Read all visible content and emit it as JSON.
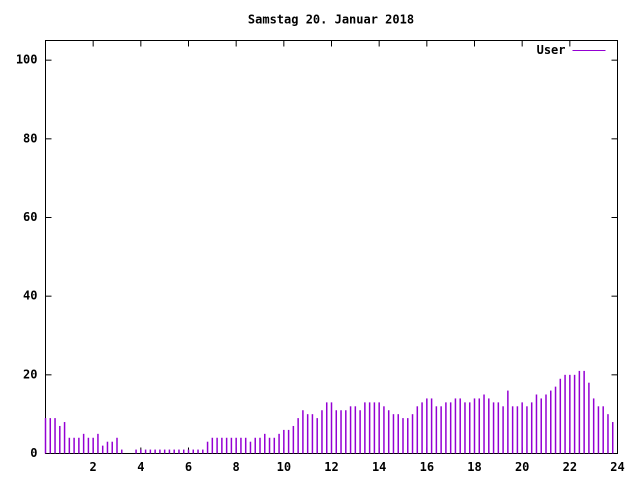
{
  "chart_data": {
    "type": "impulse",
    "title": "Samstag 20. Januar 2018",
    "x": [
      0,
      0.2,
      0.4,
      0.6,
      0.8,
      1,
      1.2,
      1.4,
      1.6,
      1.8,
      2,
      2.2,
      2.4,
      2.6,
      2.8,
      3,
      3.2,
      3.4,
      3.6,
      3.8,
      4,
      4.2,
      4.4,
      4.6,
      4.8,
      5,
      5.2,
      5.4,
      5.6,
      5.8,
      6,
      6.2,
      6.4,
      6.6,
      6.8,
      7,
      7.2,
      7.4,
      7.6,
      7.8,
      8,
      8.2,
      8.4,
      8.6,
      8.8,
      9,
      9.2,
      9.4,
      9.6,
      9.8,
      10,
      10.2,
      10.4,
      10.6,
      10.8,
      11,
      11.2,
      11.4,
      11.6,
      11.8,
      12,
      12.2,
      12.4,
      12.6,
      12.8,
      13,
      13.2,
      13.4,
      13.6,
      13.8,
      14,
      14.2,
      14.4,
      14.6,
      14.8,
      15,
      15.2,
      15.4,
      15.6,
      15.8,
      16,
      16.2,
      16.4,
      16.6,
      16.8,
      17,
      17.2,
      17.4,
      17.6,
      17.8,
      18,
      18.2,
      18.4,
      18.6,
      18.8,
      19,
      19.2,
      19.4,
      19.6,
      19.8,
      20,
      20.2,
      20.4,
      20.6,
      20.8,
      21,
      21.2,
      21.4,
      21.6,
      21.8,
      22,
      22.2,
      22.4,
      22.6,
      22.8,
      23,
      23.2,
      23.4,
      23.6,
      23.8
    ],
    "series": [
      {
        "name": "User",
        "color": "#9400d3",
        "values": [
          9,
          9,
          9,
          7,
          8,
          4,
          4,
          4,
          5,
          4,
          4,
          5,
          2,
          3,
          3,
          4,
          1,
          0,
          0,
          1,
          1,
          1,
          1,
          1,
          1,
          1,
          1,
          1,
          1,
          1,
          1,
          1,
          1,
          1,
          3,
          4,
          4,
          4,
          4,
          4,
          4,
          4,
          4,
          3,
          4,
          4,
          5,
          4,
          4,
          5,
          6,
          6,
          7,
          9,
          11,
          10,
          10,
          9,
          11,
          13,
          13,
          11,
          11,
          11,
          12,
          12,
          11,
          13,
          13,
          13,
          13,
          12,
          11,
          10,
          10,
          9,
          9,
          10,
          12,
          13,
          14,
          14,
          12,
          12,
          13,
          13,
          14,
          14,
          13,
          13,
          14,
          14,
          15,
          14,
          13,
          13,
          12,
          16,
          12,
          12,
          13,
          12,
          13,
          15,
          14,
          15,
          16,
          17,
          19,
          20,
          20,
          20,
          21,
          21,
          18,
          14,
          12,
          12,
          10,
          8
        ]
      }
    ],
    "xlim": [
      0,
      24
    ],
    "xticks": [
      2,
      4,
      6,
      8,
      10,
      12,
      14,
      16,
      18,
      20,
      22,
      24
    ],
    "ylim": [
      0,
      105
    ],
    "yticks": [
      0,
      20,
      40,
      60,
      80,
      100
    ],
    "legend": "top-right"
  }
}
